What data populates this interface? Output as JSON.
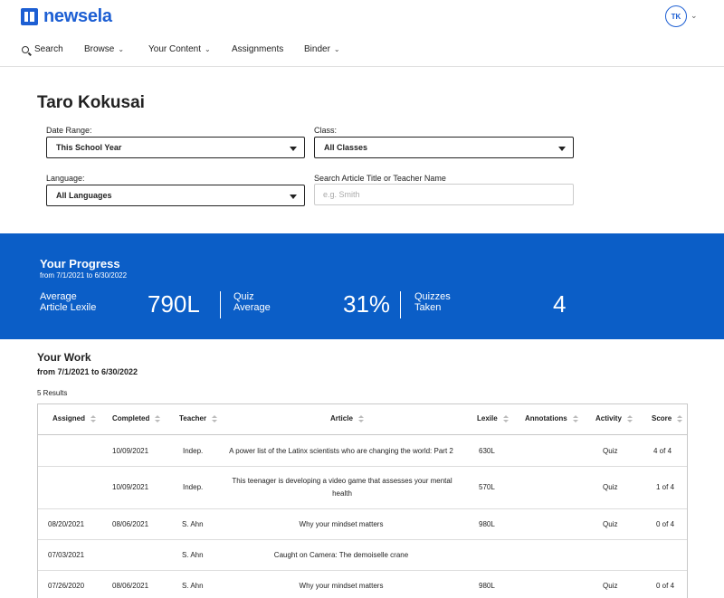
{
  "header": {
    "logo_text": "newsela",
    "avatar_initials": "TK"
  },
  "nav": {
    "search": "Search",
    "browse": "Browse",
    "your_content": "Your Content",
    "assignments": "Assignments",
    "binder": "Binder"
  },
  "page": {
    "title": "Taro Kokusai"
  },
  "filters": {
    "date_range_label": "Date Range:",
    "date_range_value": "This School Year",
    "class_label": "Class:",
    "class_value": "All Classes",
    "language_label": "Language:",
    "language_value": "All Languages",
    "search_label": "Search Article Title or Teacher Name",
    "search_placeholder": "e.g. Smith",
    "search_value": ""
  },
  "progress": {
    "title": "Your Progress",
    "range": "from 7/1/2021 to 6/30/2022",
    "stats": [
      {
        "label_line1": "Average",
        "label_line2": "Article Lexile",
        "value": "790L"
      },
      {
        "label_line1": "Quiz",
        "label_line2": "Average",
        "value": "31%"
      },
      {
        "label_line1": "Quizzes",
        "label_line2": "Taken",
        "value": "4"
      }
    ],
    "background_color": "#0b5ec7"
  },
  "work": {
    "title": "Your Work",
    "range": "from 7/1/2021 to 6/30/2022",
    "results": "5 Results",
    "columns": [
      "Assigned",
      "Completed",
      "Teacher",
      "Article",
      "Lexile",
      "Annotations",
      "Activity",
      "Score"
    ],
    "rows": [
      {
        "assigned": "",
        "completed": "10/09/2021",
        "teacher": "Indep.",
        "article": "A power list of the Latinx scientists who are changing the world: Part 2",
        "lexile": "630L",
        "annotations": "",
        "activity": "Quiz",
        "score": "4 of 4"
      },
      {
        "assigned": "",
        "completed": "10/09/2021",
        "teacher": "Indep.",
        "article": "This teenager is developing a video game that assesses your mental health",
        "lexile": "570L",
        "annotations": "",
        "activity": "Quiz",
        "score": "1 of 4"
      },
      {
        "assigned": "08/20/2021",
        "completed": "08/06/2021",
        "teacher": "S. Ahn",
        "article": "Why your mindset matters",
        "lexile": "980L",
        "annotations": "",
        "activity": "Quiz",
        "score": "0 of 4"
      },
      {
        "assigned": "07/03/2021",
        "completed": "",
        "teacher": "S. Ahn",
        "article": "Caught on Camera: The demoiselle crane",
        "lexile": "",
        "annotations": "",
        "activity": "",
        "score": ""
      },
      {
        "assigned": "07/26/2020",
        "completed": "08/06/2021",
        "teacher": "S. Ahn",
        "article": "Why your mindset matters",
        "lexile": "980L",
        "annotations": "",
        "activity": "Quiz",
        "score": "0 of 4"
      }
    ]
  },
  "colors": {
    "brand": "#1d5fd3"
  }
}
